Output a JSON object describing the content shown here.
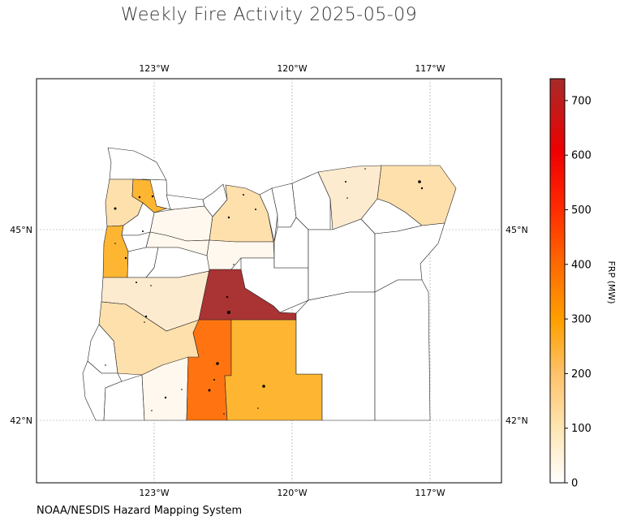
{
  "title": "Weekly Fire Activity 2025-05-09",
  "credit": "NOAA/NESDIS Hazard Mapping System",
  "map": {
    "region": "Oregon counties",
    "lon_ticks_top": [
      "123°W",
      "120°W",
      "117°W"
    ],
    "lon_ticks_bottom": [
      "123°W",
      "120°W",
      "117°W"
    ],
    "lat_ticks_left": [
      "45°N",
      "42°N"
    ],
    "lat_ticks_right": [
      "45°N",
      "42°N"
    ],
    "gridlines": true
  },
  "colorbar": {
    "label": "FRP (MW)",
    "min": 0,
    "max": 740,
    "ticks": [
      "0",
      "100",
      "200",
      "300",
      "400",
      "500",
      "600",
      "700"
    ],
    "colors": [
      "#ffffff",
      "#ffe7b8",
      "#ffd08a",
      "#ffa500",
      "#ff7a00",
      "#ff3800",
      "#ff0000",
      "#b22222"
    ]
  },
  "colors": {
    "frp_very_low": "#fff8ee",
    "frp_low": "#fdebd0",
    "frp_mid_low": "#fee0ad",
    "frp_mid": "#feb632",
    "frp_high": "#ff7411",
    "frp_max": "#aa3333",
    "no_data": "#ffffff"
  }
}
